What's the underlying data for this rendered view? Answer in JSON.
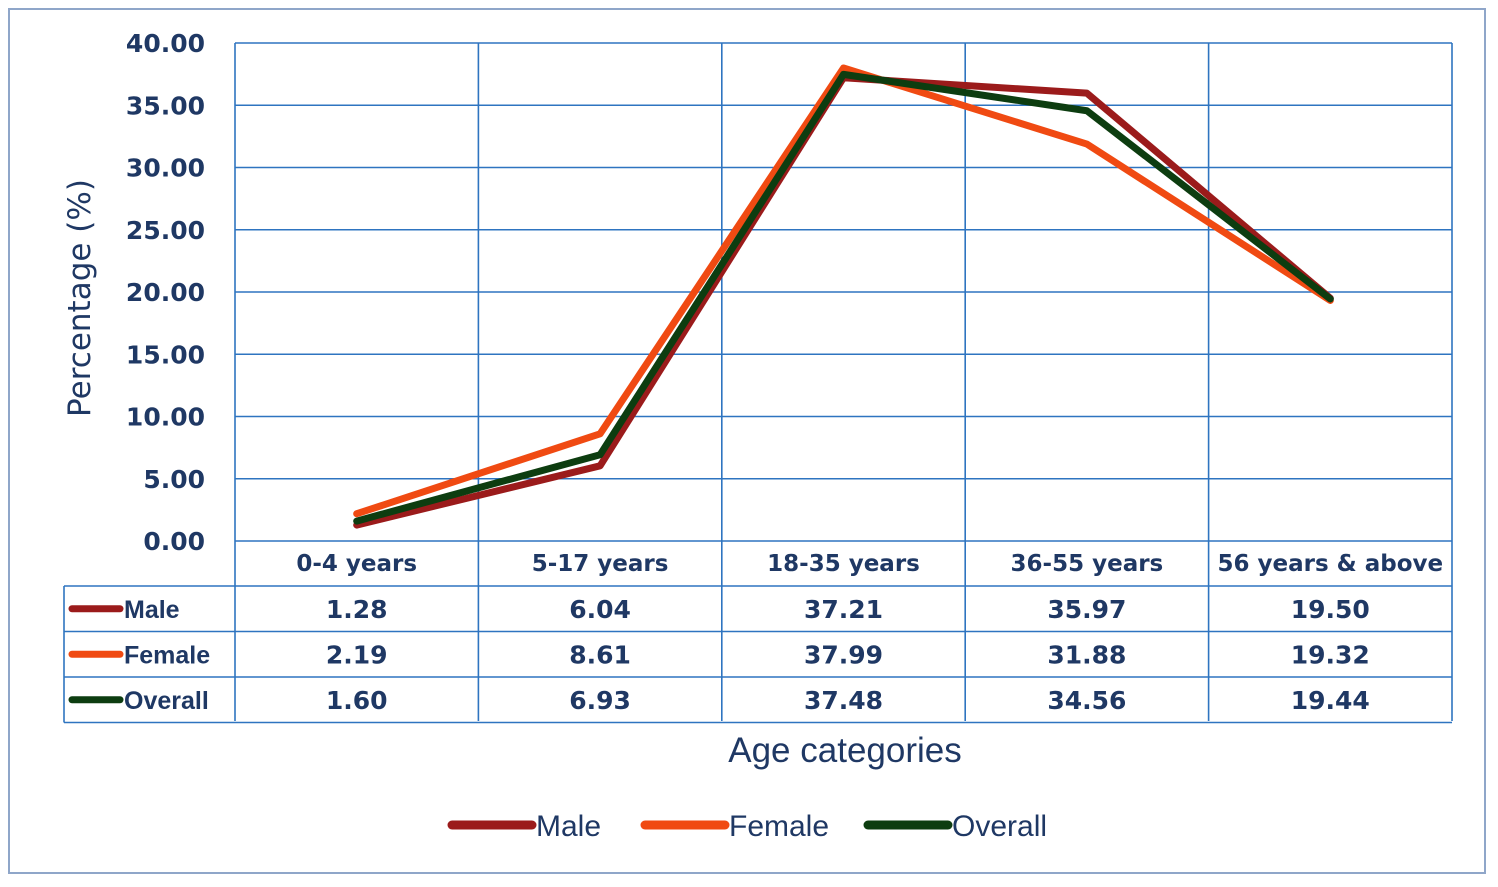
{
  "chart_data": {
    "type": "line",
    "title": "",
    "xlabel": "Age categories",
    "ylabel": "Percentage (%)",
    "ylim": [
      0,
      40
    ],
    "yticks": [
      "0.00",
      "5.00",
      "10.00",
      "15.00",
      "20.00",
      "25.00",
      "30.00",
      "35.00",
      "40.00"
    ],
    "grid": true,
    "legend_position": "bottom",
    "categories": [
      "0-4 years",
      "5-17 years",
      "18-35 years",
      "36-55 years",
      "56 years & above"
    ],
    "series": [
      {
        "name": "Male",
        "color": "#9b1b1b",
        "values": [
          1.28,
          6.04,
          37.21,
          35.97,
          19.5
        ],
        "labels": [
          "1.28",
          "6.04",
          "37.21",
          "35.97",
          "19.50"
        ]
      },
      {
        "name": "Female",
        "color": "#f04a12",
        "values": [
          2.19,
          8.61,
          37.99,
          31.88,
          19.32
        ],
        "labels": [
          "2.19",
          "8.61",
          "37.99",
          "31.88",
          "19.32"
        ]
      },
      {
        "name": "Overall",
        "color": "#0d3d10",
        "values": [
          1.6,
          6.93,
          37.48,
          34.56,
          19.44
        ],
        "labels": [
          "1.60",
          "6.93",
          "37.48",
          "34.56",
          "19.44"
        ]
      }
    ],
    "gridline_color": "#2e74c0",
    "table_line_color": "#2e74c0"
  }
}
